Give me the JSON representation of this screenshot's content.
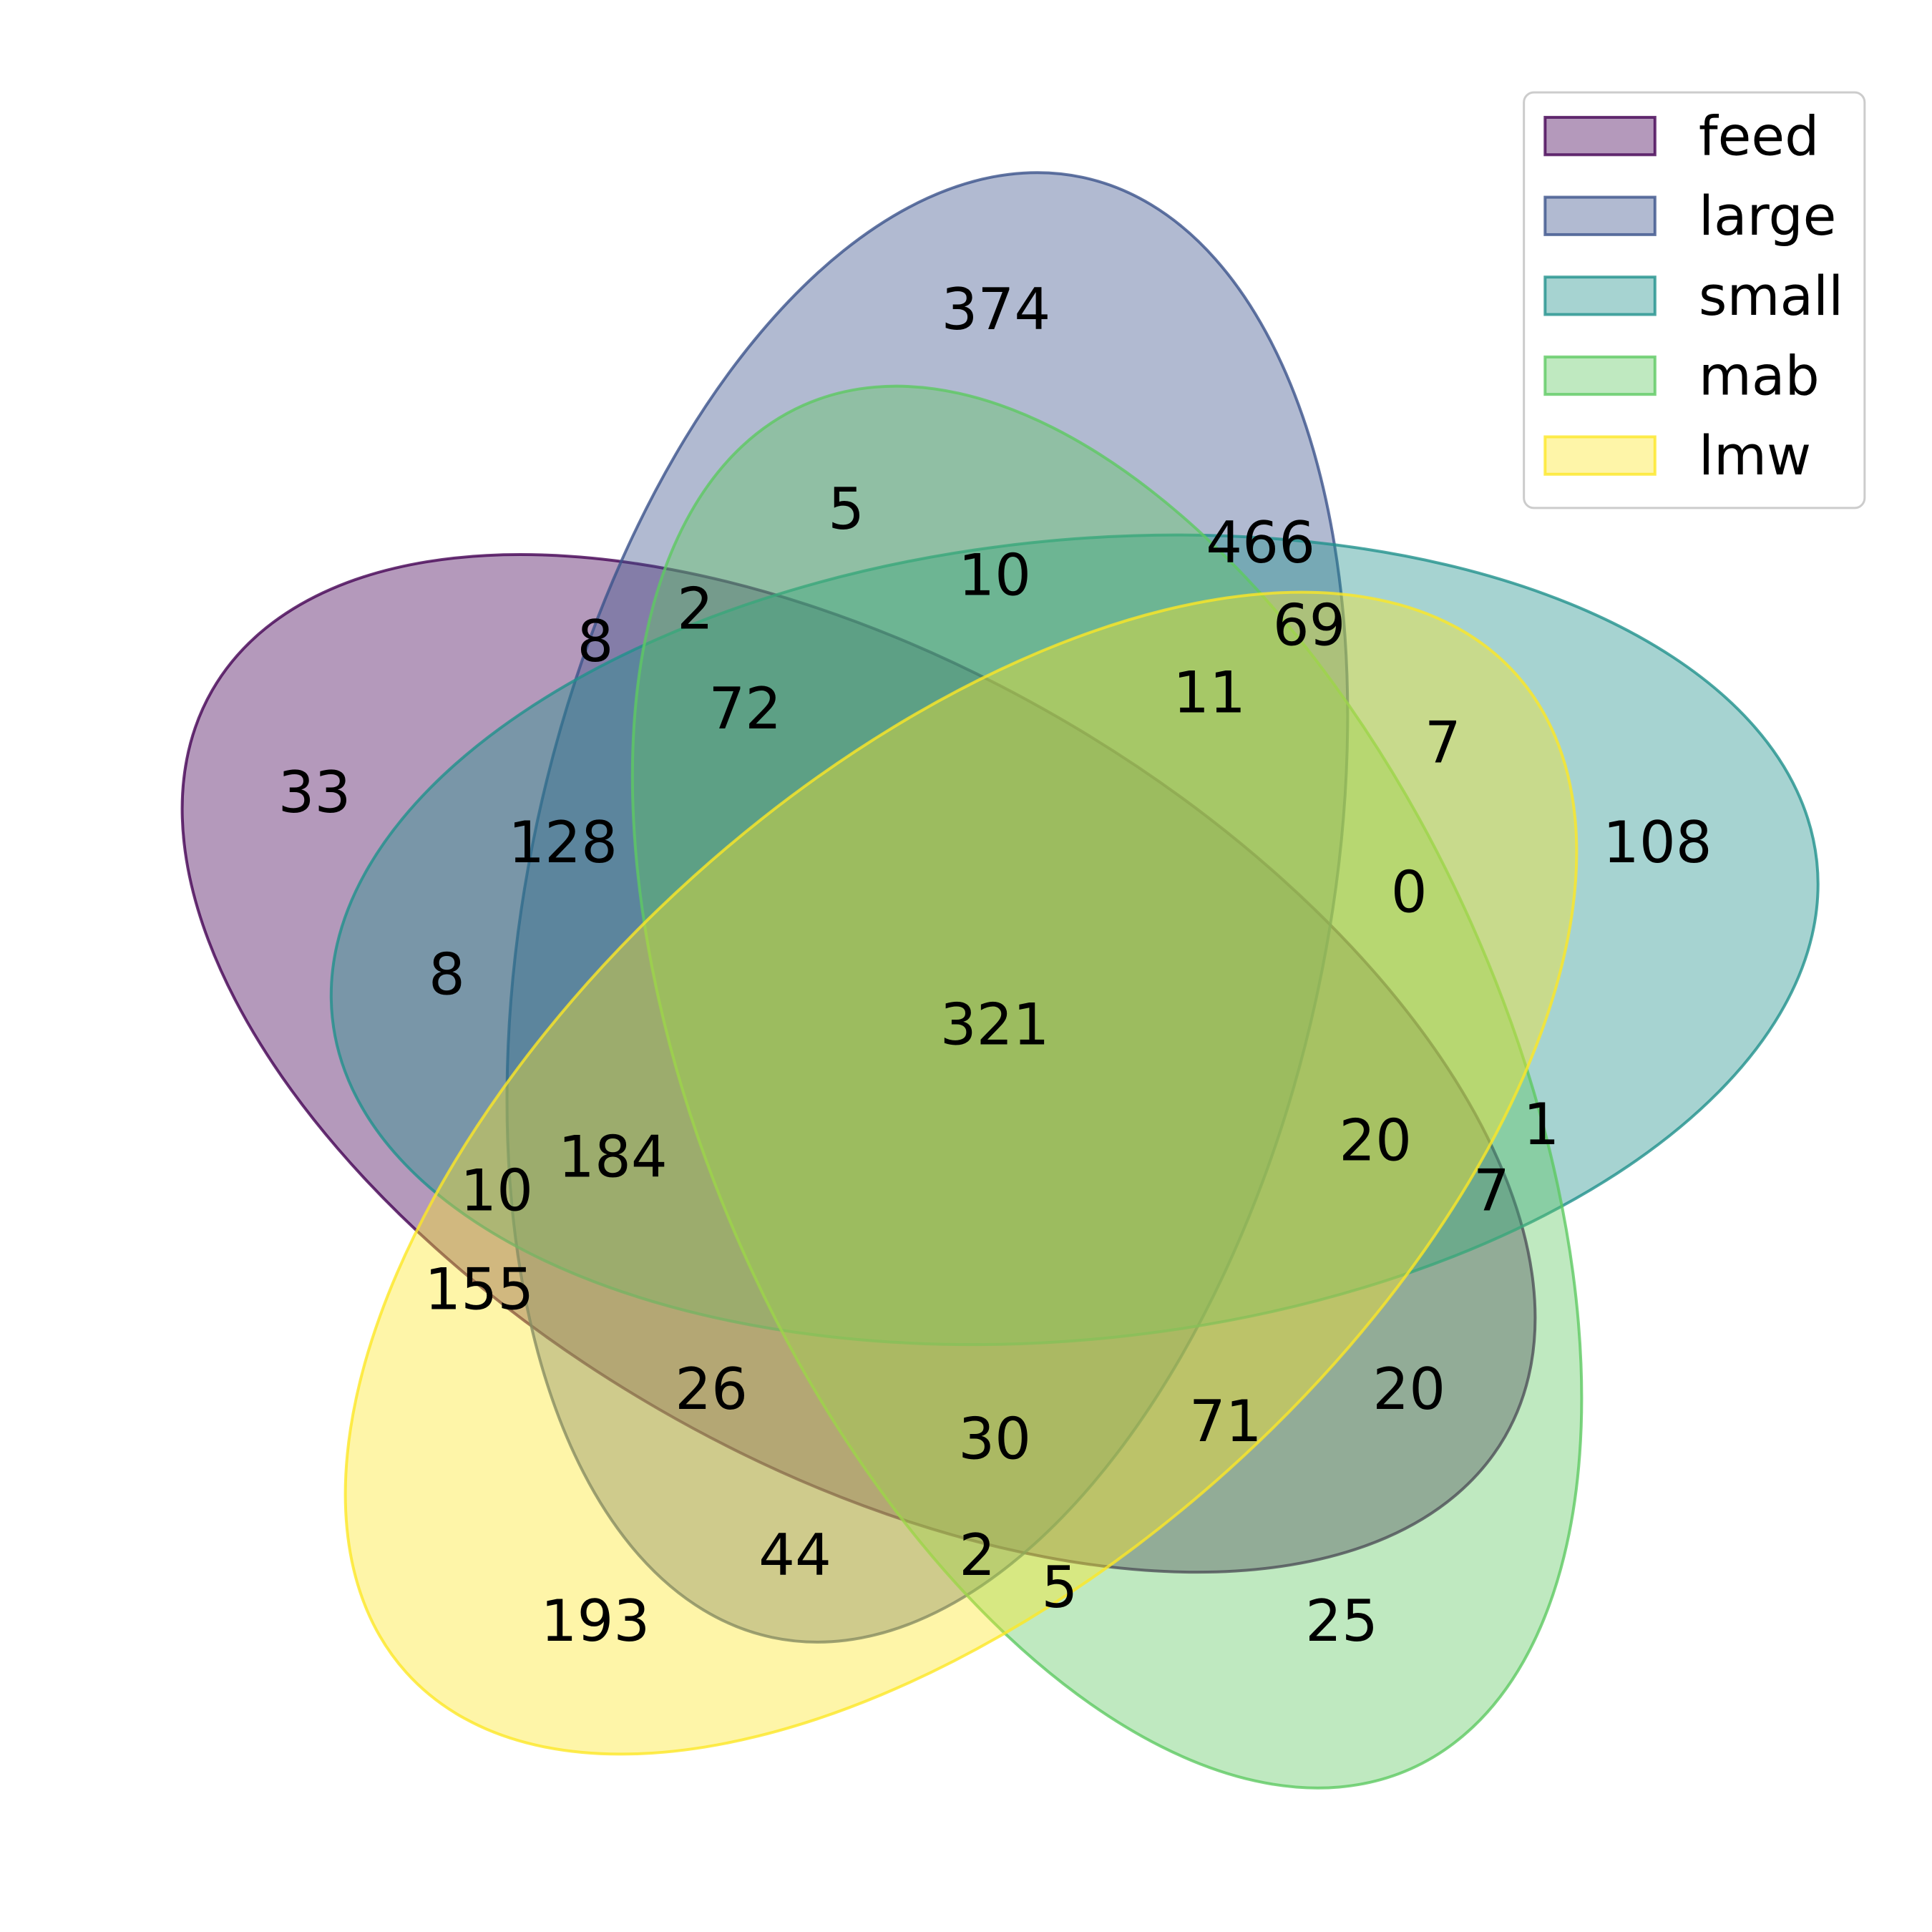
{
  "diagram": {
    "type": "venn-5",
    "sets": [
      {
        "name": "feed",
        "color": "#440154"
      },
      {
        "name": "large",
        "color": "#3b528b"
      },
      {
        "name": "small",
        "color": "#21918c"
      },
      {
        "name": "mab",
        "color": "#5ec962"
      },
      {
        "name": "lmw",
        "color": "#fde725"
      }
    ],
    "regions": [
      {
        "sets": [
          "large"
        ],
        "value": "374"
      },
      {
        "sets": [
          "large",
          "mab"
        ],
        "value": "5"
      },
      {
        "sets": [
          "large",
          "small"
        ],
        "value": "466"
      },
      {
        "sets": [
          "large",
          "small",
          "mab"
        ],
        "value": "10"
      },
      {
        "sets": [
          "large",
          "small",
          "lmw"
        ],
        "value": "69"
      },
      {
        "sets": [
          "feed",
          "large",
          "mab"
        ],
        "value": "2"
      },
      {
        "sets": [
          "feed",
          "large"
        ],
        "value": "8"
      },
      {
        "sets": [
          "feed",
          "large",
          "small",
          "mab"
        ],
        "value": "72"
      },
      {
        "sets": [
          "large",
          "small",
          "mab",
          "lmw"
        ],
        "value": "11"
      },
      {
        "sets": [
          "small",
          "lmw"
        ],
        "value": "7"
      },
      {
        "sets": [
          "feed"
        ],
        "value": "33"
      },
      {
        "sets": [
          "feed",
          "large",
          "small"
        ],
        "value": "128"
      },
      {
        "sets": [
          "small"
        ],
        "value": "108"
      },
      {
        "sets": [
          "small",
          "mab",
          "lmw"
        ],
        "value": "0"
      },
      {
        "sets": [
          "feed",
          "small"
        ],
        "value": "8"
      },
      {
        "sets": [
          "feed",
          "large",
          "small",
          "mab",
          "lmw"
        ],
        "value": "321"
      },
      {
        "sets": [
          "feed",
          "small",
          "mab",
          "lmw"
        ],
        "value": "20"
      },
      {
        "sets": [
          "small",
          "mab"
        ],
        "value": "1"
      },
      {
        "sets": [
          "feed",
          "large",
          "small",
          "lmw"
        ],
        "value": "184"
      },
      {
        "sets": [
          "feed",
          "small",
          "lmw"
        ],
        "value": "10"
      },
      {
        "sets": [
          "feed",
          "small",
          "mab"
        ],
        "value": "7"
      },
      {
        "sets": [
          "feed",
          "lmw"
        ],
        "value": "155"
      },
      {
        "sets": [
          "feed",
          "large",
          "lmw"
        ],
        "value": "26"
      },
      {
        "sets": [
          "feed",
          "mab"
        ],
        "value": "20"
      },
      {
        "sets": [
          "feed",
          "large",
          "mab",
          "lmw"
        ],
        "value": "30"
      },
      {
        "sets": [
          "feed",
          "mab",
          "lmw"
        ],
        "value": "71"
      },
      {
        "sets": [
          "large",
          "lmw"
        ],
        "value": "44"
      },
      {
        "sets": [
          "large",
          "mab",
          "lmw"
        ],
        "value": "2"
      },
      {
        "sets": [
          "mab",
          "lmw"
        ],
        "value": "5"
      },
      {
        "sets": [
          "lmw"
        ],
        "value": "193"
      },
      {
        "sets": [
          "mab"
        ],
        "value": "25"
      }
    ],
    "legend": {
      "placement": "top-right",
      "entries": [
        "feed",
        "large",
        "small",
        "mab",
        "lmw"
      ]
    }
  }
}
